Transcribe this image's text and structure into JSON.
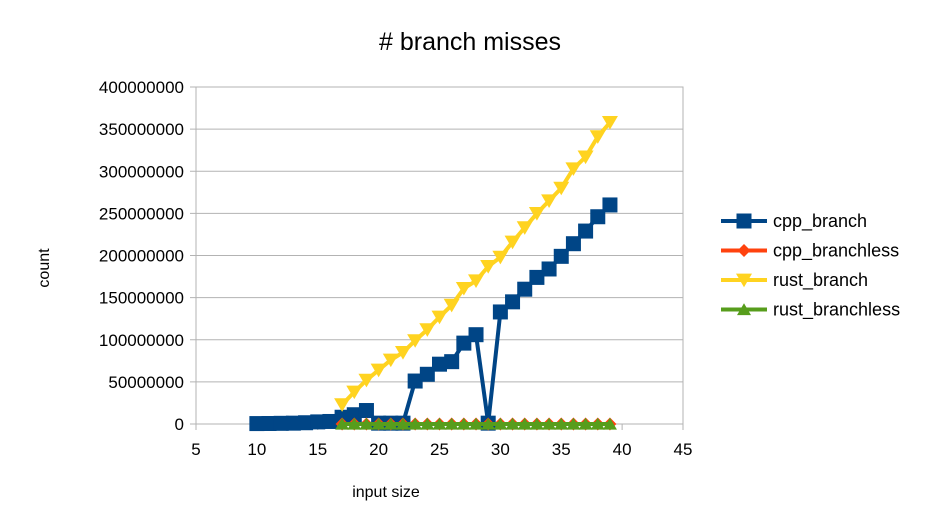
{
  "chart_data": {
    "type": "scatter",
    "title": "# branch misses",
    "xlabel": "input size",
    "ylabel": "count",
    "xlim": [
      5,
      45
    ],
    "ylim": [
      0,
      400000000
    ],
    "xticks": [
      5,
      10,
      15,
      20,
      25,
      30,
      35,
      40,
      45
    ],
    "yticks": [
      0,
      50000000,
      100000000,
      150000000,
      200000000,
      250000000,
      300000000,
      350000000,
      400000000
    ],
    "grid": true,
    "legend_position": "right",
    "series": [
      {
        "name": "cpp_branch",
        "color": "#004586",
        "marker": "square",
        "x": [
          10,
          11,
          12,
          13,
          14,
          15,
          16,
          17,
          18,
          19,
          20,
          21,
          22,
          23,
          24,
          25,
          26,
          27,
          28,
          29,
          30,
          31,
          32,
          33,
          34,
          35,
          36,
          37,
          38,
          39
        ],
        "y": [
          500000,
          600000,
          800000,
          1000000,
          1500000,
          2500000,
          3000000,
          8000000,
          11000000,
          16000000,
          1000000,
          1000000,
          1000000,
          51000000,
          59000000,
          71000000,
          74000000,
          96000000,
          106000000,
          1000000,
          133000000,
          145000000,
          160000000,
          174000000,
          184000000,
          199000000,
          214000000,
          229000000,
          246000000,
          260000000
        ]
      },
      {
        "name": "cpp_branchless",
        "color": "#ff420e",
        "marker": "diamond",
        "x": [
          17,
          18,
          19,
          20,
          21,
          22,
          23,
          24,
          25,
          26,
          27,
          28,
          29,
          30,
          31,
          32,
          33,
          34,
          35,
          36,
          37,
          38,
          39
        ],
        "y": [
          0,
          0,
          0,
          0,
          0,
          0,
          0,
          0,
          0,
          0,
          0,
          0,
          0,
          0,
          0,
          0,
          0,
          0,
          0,
          0,
          0,
          0,
          0
        ]
      },
      {
        "name": "rust_branch",
        "color": "#ffd320",
        "marker": "triangle-down",
        "x": [
          17,
          18,
          19,
          20,
          21,
          22,
          23,
          24,
          25,
          26,
          27,
          28,
          29,
          30,
          31,
          32,
          33,
          34,
          35,
          36,
          37,
          38,
          39
        ],
        "y": [
          23000000,
          38000000,
          52000000,
          64000000,
          76000000,
          85000000,
          99000000,
          112000000,
          127000000,
          141000000,
          161000000,
          170000000,
          187000000,
          198000000,
          216000000,
          233000000,
          250000000,
          265000000,
          280000000,
          303000000,
          317000000,
          341000000,
          358000000
        ]
      },
      {
        "name": "rust_branchless",
        "color": "#579d1c",
        "marker": "triangle-up",
        "x": [
          17,
          18,
          19,
          20,
          21,
          22,
          23,
          24,
          25,
          26,
          27,
          28,
          29,
          30,
          31,
          32,
          33,
          34,
          35,
          36,
          37,
          38,
          39
        ],
        "y": [
          0,
          0,
          0,
          0,
          0,
          0,
          0,
          0,
          0,
          0,
          0,
          0,
          0,
          0,
          0,
          0,
          0,
          0,
          0,
          0,
          0,
          0,
          0
        ]
      }
    ]
  }
}
